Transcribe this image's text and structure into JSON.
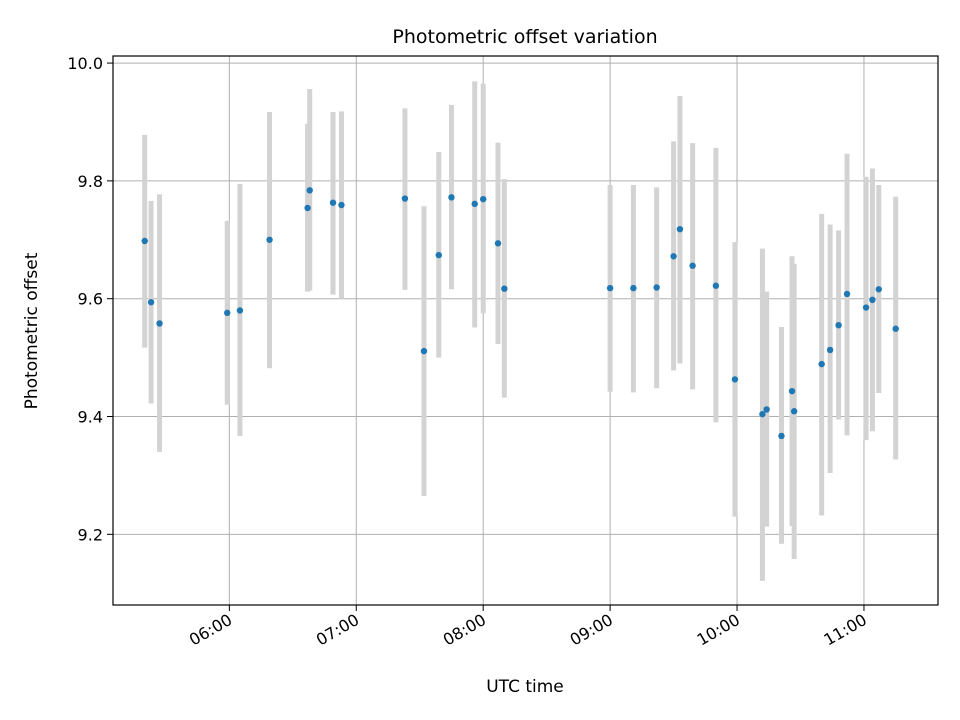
{
  "chart_data": {
    "type": "scatter",
    "title": "Photometric offset variation",
    "xlabel": "UTC time",
    "ylabel": "Photometric offset",
    "xlim": [
      "05:05",
      "11:35"
    ],
    "ylim": [
      9.08,
      10.012
    ],
    "x_ticks": [
      "06:00",
      "07:00",
      "08:00",
      "09:00",
      "10:00",
      "11:00"
    ],
    "y_ticks": [
      9.2,
      9.4,
      9.6,
      9.8,
      10.0
    ],
    "y_tick_labels": [
      "9.2",
      "9.4",
      "9.6",
      "9.8",
      "10.0"
    ],
    "grid": true,
    "point_color": "#1f77b4",
    "errorbar_color": "#d3d3d3",
    "points": [
      {
        "t": "05:20",
        "y": 9.698,
        "low": 9.517,
        "high": 9.878
      },
      {
        "t": "05:23",
        "y": 9.594,
        "low": 9.422,
        "high": 9.766
      },
      {
        "t": "05:27",
        "y": 9.558,
        "low": 9.34,
        "high": 9.777
      },
      {
        "t": "05:59",
        "y": 9.576,
        "low": 9.42,
        "high": 9.732
      },
      {
        "t": "06:05",
        "y": 9.58,
        "low": 9.367,
        "high": 9.795
      },
      {
        "t": "06:19",
        "y": 9.7,
        "low": 9.482,
        "high": 9.917
      },
      {
        "t": "06:37",
        "y": 9.754,
        "low": 9.612,
        "high": 9.897
      },
      {
        "t": "06:38",
        "y": 9.784,
        "low": 9.614,
        "high": 9.956
      },
      {
        "t": "06:49",
        "y": 9.763,
        "low": 9.607,
        "high": 9.917
      },
      {
        "t": "06:53",
        "y": 9.759,
        "low": 9.6,
        "high": 9.918
      },
      {
        "t": "07:23",
        "y": 9.77,
        "low": 9.615,
        "high": 9.923
      },
      {
        "t": "07:32",
        "y": 9.511,
        "low": 9.265,
        "high": 9.757
      },
      {
        "t": "07:39",
        "y": 9.674,
        "low": 9.5,
        "high": 9.849
      },
      {
        "t": "07:45",
        "y": 9.772,
        "low": 9.616,
        "high": 9.929
      },
      {
        "t": "07:56",
        "y": 9.761,
        "low": 9.551,
        "high": 9.969
      },
      {
        "t": "08:00",
        "y": 9.769,
        "low": 9.575,
        "high": 9.965
      },
      {
        "t": "08:07",
        "y": 9.694,
        "low": 9.523,
        "high": 9.865
      },
      {
        "t": "08:10",
        "y": 9.617,
        "low": 9.432,
        "high": 9.803
      },
      {
        "t": "09:00",
        "y": 9.618,
        "low": 9.442,
        "high": 9.793
      },
      {
        "t": "09:11",
        "y": 9.618,
        "low": 9.441,
        "high": 9.793
      },
      {
        "t": "09:22",
        "y": 9.619,
        "low": 9.448,
        "high": 9.789
      },
      {
        "t": "09:30",
        "y": 9.672,
        "low": 9.478,
        "high": 9.867
      },
      {
        "t": "09:33",
        "y": 9.718,
        "low": 9.49,
        "high": 9.944
      },
      {
        "t": "09:39",
        "y": 9.656,
        "low": 9.446,
        "high": 9.864
      },
      {
        "t": "09:50",
        "y": 9.622,
        "low": 9.39,
        "high": 9.856
      },
      {
        "t": "09:59",
        "y": 9.463,
        "low": 9.23,
        "high": 9.696
      },
      {
        "t": "10:12",
        "y": 9.404,
        "low": 9.121,
        "high": 9.685
      },
      {
        "t": "10:14",
        "y": 9.412,
        "low": 9.213,
        "high": 9.612
      },
      {
        "t": "10:21",
        "y": 9.367,
        "low": 9.184,
        "high": 9.552
      },
      {
        "t": "10:26",
        "y": 9.443,
        "low": 9.214,
        "high": 9.672
      },
      {
        "t": "10:27",
        "y": 9.409,
        "low": 9.158,
        "high": 9.659
      },
      {
        "t": "10:40",
        "y": 9.489,
        "low": 9.232,
        "high": 9.744
      },
      {
        "t": "10:44",
        "y": 9.513,
        "low": 9.304,
        "high": 9.726
      },
      {
        "t": "10:48",
        "y": 9.555,
        "low": 9.395,
        "high": 9.716
      },
      {
        "t": "10:52",
        "y": 9.608,
        "low": 9.368,
        "high": 9.846
      },
      {
        "t": "11:01",
        "y": 9.585,
        "low": 9.36,
        "high": 9.807
      },
      {
        "t": "11:04",
        "y": 9.598,
        "low": 9.375,
        "high": 9.821
      },
      {
        "t": "11:07",
        "y": 9.616,
        "low": 9.44,
        "high": 9.793
      },
      {
        "t": "11:15",
        "y": 9.549,
        "low": 9.327,
        "high": 9.773
      }
    ]
  }
}
